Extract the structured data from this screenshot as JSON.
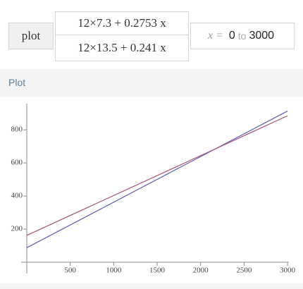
{
  "input": {
    "button": "plot",
    "functions": [
      "12×7.3 + 0.2753 x",
      "12×13.5 + 0.241 x"
    ],
    "range": {
      "variable": "x =",
      "from": "0",
      "word": "to",
      "to": "3000"
    }
  },
  "section": {
    "title": "Plot"
  },
  "chart_data": {
    "type": "line",
    "x": [
      0,
      3000
    ],
    "series": [
      {
        "color": "#5c5caf",
        "values": [
          87.6,
          913.5
        ]
      },
      {
        "color": "#a5507c",
        "values": [
          162,
          885
        ]
      }
    ],
    "xlim": [
      0,
      3000
    ],
    "xticks": [
      500,
      1000,
      1500,
      2000,
      2500,
      3000
    ],
    "ylim": [
      0,
      950
    ],
    "yticks": [
      200,
      400,
      600,
      800
    ]
  }
}
